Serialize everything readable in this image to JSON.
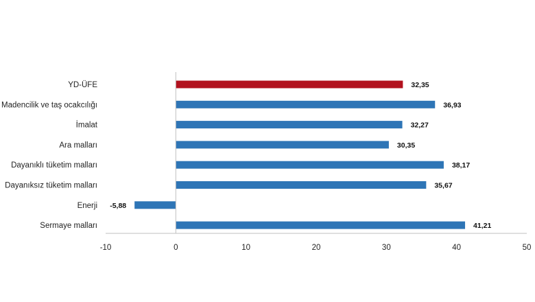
{
  "chart_data": {
    "type": "bar",
    "orientation": "horizontal",
    "categories": [
      "YD-ÜFE",
      "Madencilik ve taş ocakcılığı",
      "İmalat",
      "Ara malları",
      "Dayanıklı tüketim malları",
      "Dayanıksız tüketim malları",
      "Enerji",
      "Sermaye malları"
    ],
    "values": [
      32.35,
      36.93,
      32.27,
      30.35,
      38.17,
      35.67,
      -5.88,
      41.21
    ],
    "value_labels": [
      "32,35",
      "36,93",
      "32,27",
      "30,35",
      "38,17",
      "35,67",
      "-5,88",
      "41,21"
    ],
    "highlight_index": 0,
    "xlim": [
      -10,
      50
    ],
    "xticks": [
      -10,
      0,
      10,
      20,
      30,
      40,
      50
    ],
    "xtick_labels": [
      "-10",
      "0",
      "10",
      "20",
      "30",
      "40",
      "50"
    ],
    "grid": false,
    "legend": "none",
    "colors": {
      "highlight": "#b2121e",
      "bar": "#2e75b6",
      "axis": "#bfbfbf"
    }
  }
}
